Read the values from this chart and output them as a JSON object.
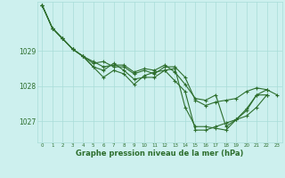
{
  "title": "Graphe pression niveau de la mer (hPa)",
  "background_color": "#cdf0ee",
  "grid_color": "#a8ddd8",
  "line_color": "#2d6e2d",
  "xlim": [
    -0.5,
    23.5
  ],
  "ylim": [
    1026.4,
    1030.4
  ],
  "yticks": [
    1027,
    1028,
    1029
  ],
  "xticks": [
    0,
    1,
    2,
    3,
    4,
    5,
    6,
    7,
    8,
    9,
    10,
    11,
    12,
    13,
    14,
    15,
    16,
    17,
    18,
    19,
    20,
    21,
    22,
    23
  ],
  "series": [
    {
      "x": [
        0,
        1,
        2,
        3,
        4,
        5,
        6,
        7,
        8,
        9,
        10,
        11,
        12,
        13,
        14,
        15,
        16,
        17,
        18,
        19,
        20,
        21,
        22,
        23
      ],
      "y": [
        1030.3,
        1029.65,
        1029.35,
        1029.05,
        1028.85,
        1028.65,
        1028.7,
        1028.55,
        1028.55,
        1028.35,
        1028.45,
        1028.35,
        1028.55,
        1028.55,
        1028.25,
        1027.6,
        1027.45,
        1027.55,
        1027.6,
        1027.65,
        1027.85,
        1027.95,
        1027.9,
        1027.75
      ]
    },
    {
      "x": [
        0,
        1,
        2,
        3,
        4,
        5,
        6,
        7,
        8,
        9,
        10,
        11,
        12,
        13,
        14,
        15,
        16,
        17,
        18,
        19,
        20,
        21,
        22
      ],
      "y": [
        1030.3,
        1029.65,
        1029.35,
        1029.05,
        1028.85,
        1028.55,
        1028.45,
        1028.65,
        1028.45,
        1028.2,
        1028.25,
        1028.25,
        1028.45,
        1028.5,
        1027.4,
        1026.85,
        1026.85,
        1026.8,
        1026.75,
        1027.05,
        1027.35,
        1027.75,
        1027.75
      ]
    },
    {
      "x": [
        0,
        1,
        2,
        3,
        4,
        5,
        6,
        7,
        8,
        9,
        10,
        11,
        12,
        13,
        14,
        15,
        16,
        17,
        18,
        19,
        20,
        21,
        22
      ],
      "y": [
        1030.3,
        1029.65,
        1029.35,
        1029.05,
        1028.85,
        1028.55,
        1028.25,
        1028.45,
        1028.35,
        1028.05,
        1028.3,
        1028.4,
        1028.45,
        1028.15,
        1027.85,
        1026.75,
        1026.75,
        1026.85,
        1026.95,
        1027.05,
        1027.3,
        1027.75,
        1027.9
      ]
    },
    {
      "x": [
        0,
        1,
        2,
        3,
        4,
        5,
        6,
        7,
        8,
        9,
        10,
        11,
        12,
        13,
        14,
        15,
        16,
        17,
        18,
        19,
        20,
        21,
        22
      ],
      "y": [
        1030.3,
        1029.65,
        1029.35,
        1029.05,
        1028.85,
        1028.7,
        1028.55,
        1028.6,
        1028.6,
        1028.4,
        1028.5,
        1028.45,
        1028.6,
        1028.4,
        1028.05,
        1027.65,
        1027.6,
        1027.75,
        1026.85,
        1027.05,
        1027.15,
        1027.4,
        1027.75
      ]
    }
  ]
}
